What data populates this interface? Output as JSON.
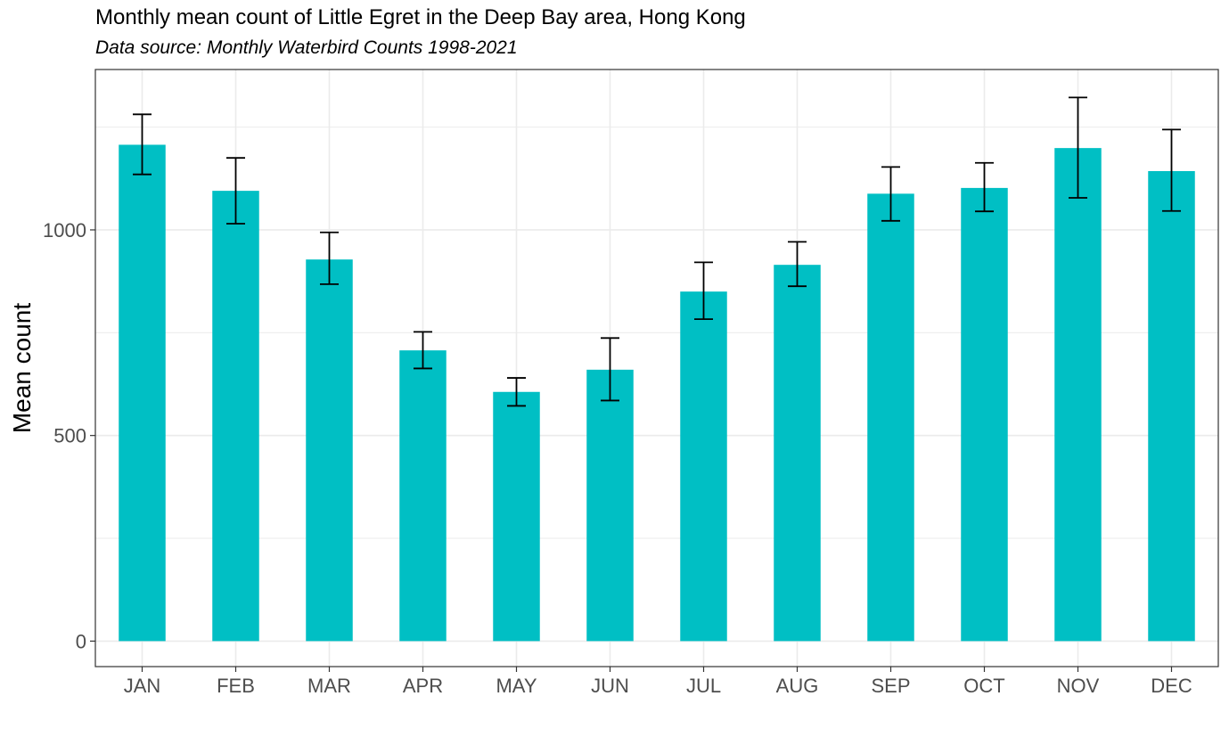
{
  "chart_data": {
    "type": "bar",
    "title": "Monthly mean count of Little Egret in the Deep Bay area, Hong Kong",
    "subtitle": "Data source: Monthly Waterbird Counts 1998-2021",
    "xlabel": "",
    "ylabel": "Mean count",
    "categories": [
      "JAN",
      "FEB",
      "MAR",
      "APR",
      "MAY",
      "JUN",
      "JUL",
      "AUG",
      "SEP",
      "OCT",
      "NOV",
      "DEC"
    ],
    "values": [
      1207,
      1095,
      928,
      707,
      606,
      660,
      850,
      915,
      1088,
      1102,
      1199,
      1143
    ],
    "error_low": [
      1135,
      1015,
      868,
      663,
      572,
      585,
      783,
      863,
      1022,
      1045,
      1078,
      1046
    ],
    "error_high": [
      1281,
      1175,
      994,
      752,
      640,
      737,
      921,
      971,
      1153,
      1163,
      1322,
      1244
    ],
    "ylim": [
      -62,
      1390
    ],
    "yticks": [
      0,
      500,
      1000
    ],
    "grid": true,
    "legend": "none",
    "colors": {
      "bar": "#00BFC4",
      "error_bar": "#000000",
      "grid": "#ebebeb",
      "panel_border": "#333333"
    }
  }
}
